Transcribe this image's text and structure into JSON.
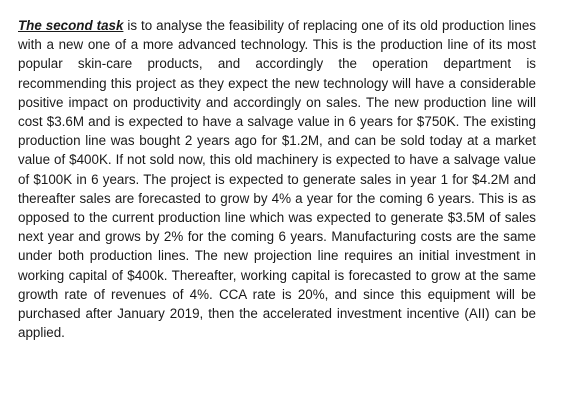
{
  "paragraph": {
    "lead": "The second task",
    "text": " is to analyse the feasibility of replacing one of its old production lines with a new one of a more advanced technology. This is the production line of its most popular skin-care products, and accordingly the operation department is recommending this project as they expect the new technology will have a considerable positive impact on productivity and accordingly on sales. The new production line will cost $3.6M and is expected to have a salvage value in 6 years for $750K. The existing production line was bought 2 years ago for $1.2M, and can be sold today at a market value of $400K. If not sold now, this old machinery is expected to have a salvage value of $100K in 6 years. The project is expected to generate sales in year 1 for $4.2M and thereafter sales are forecasted to grow by 4% a year for the coming 6 years. This is as opposed to the current production line which was expected to generate $3.5M of sales next year and grows by 2% for the coming 6 years. Manufacturing costs are the same under both production lines. The new projection line requires an initial investment in working capital of $400k. Thereafter, working capital is forecasted to grow at the same growth rate of revenues of 4%. CCA rate is 20%, and since this equipment will be purchased after January 2019, then the accelerated investment incentive (AII) can be applied."
  }
}
